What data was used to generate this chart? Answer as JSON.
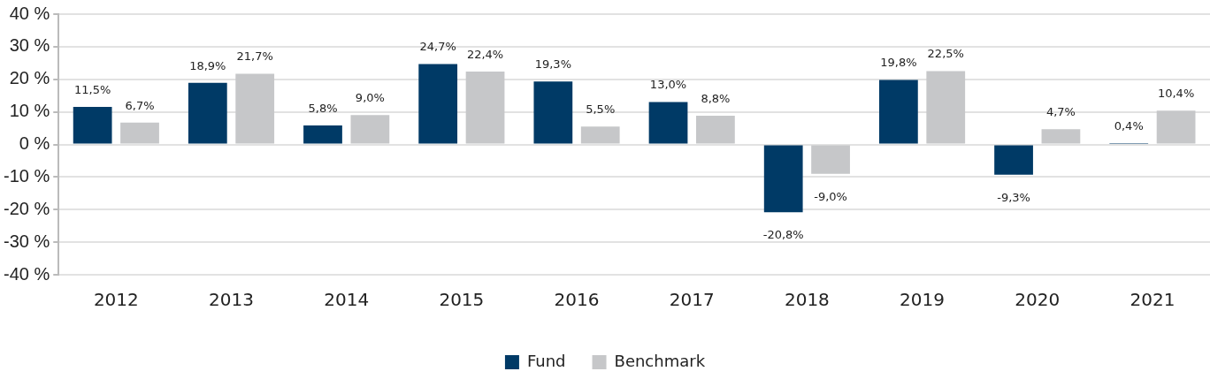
{
  "chart_data": {
    "type": "bar",
    "categories": [
      "2012",
      "2013",
      "2014",
      "2015",
      "2016",
      "2017",
      "2018",
      "2019",
      "2020",
      "2021"
    ],
    "series": [
      {
        "name": "Fund",
        "color": "#003a66",
        "values": [
          11.5,
          18.9,
          5.8,
          24.7,
          19.3,
          13.0,
          -20.8,
          19.8,
          -9.3,
          0.4
        ],
        "value_labels": [
          "11,5%",
          "18,9%",
          "5,8%",
          "24,7%",
          "19,3%",
          "13,0%",
          "-20,8%",
          "19,8%",
          "-9,3%",
          "0,4%"
        ]
      },
      {
        "name": "Benchmark",
        "color": "#c6c7c9",
        "values": [
          6.7,
          21.7,
          9.0,
          22.4,
          5.5,
          8.8,
          -9.0,
          22.5,
          4.7,
          10.4
        ],
        "value_labels": [
          "6,7%",
          "21,7%",
          "9,0%",
          "22,4%",
          "5,5%",
          "8,8%",
          "-9,0%",
          "22,5%",
          "4,7%",
          "10,4%"
        ]
      }
    ],
    "ylim": [
      -40,
      40
    ],
    "yticks": [
      {
        "value": -40,
        "label": "-40 %"
      },
      {
        "value": -30,
        "label": "-30 %"
      },
      {
        "value": -20,
        "label": "-20 %"
      },
      {
        "value": -10,
        "label": "-10 %"
      },
      {
        "value": 0,
        "label": "0 %"
      },
      {
        "value": 10,
        "label": "10 %"
      },
      {
        "value": 20,
        "label": "20 %"
      },
      {
        "value": 30,
        "label": "30 %"
      },
      {
        "value": 40,
        "label": "40 %"
      }
    ],
    "grid": "y",
    "legend": "bottom"
  }
}
